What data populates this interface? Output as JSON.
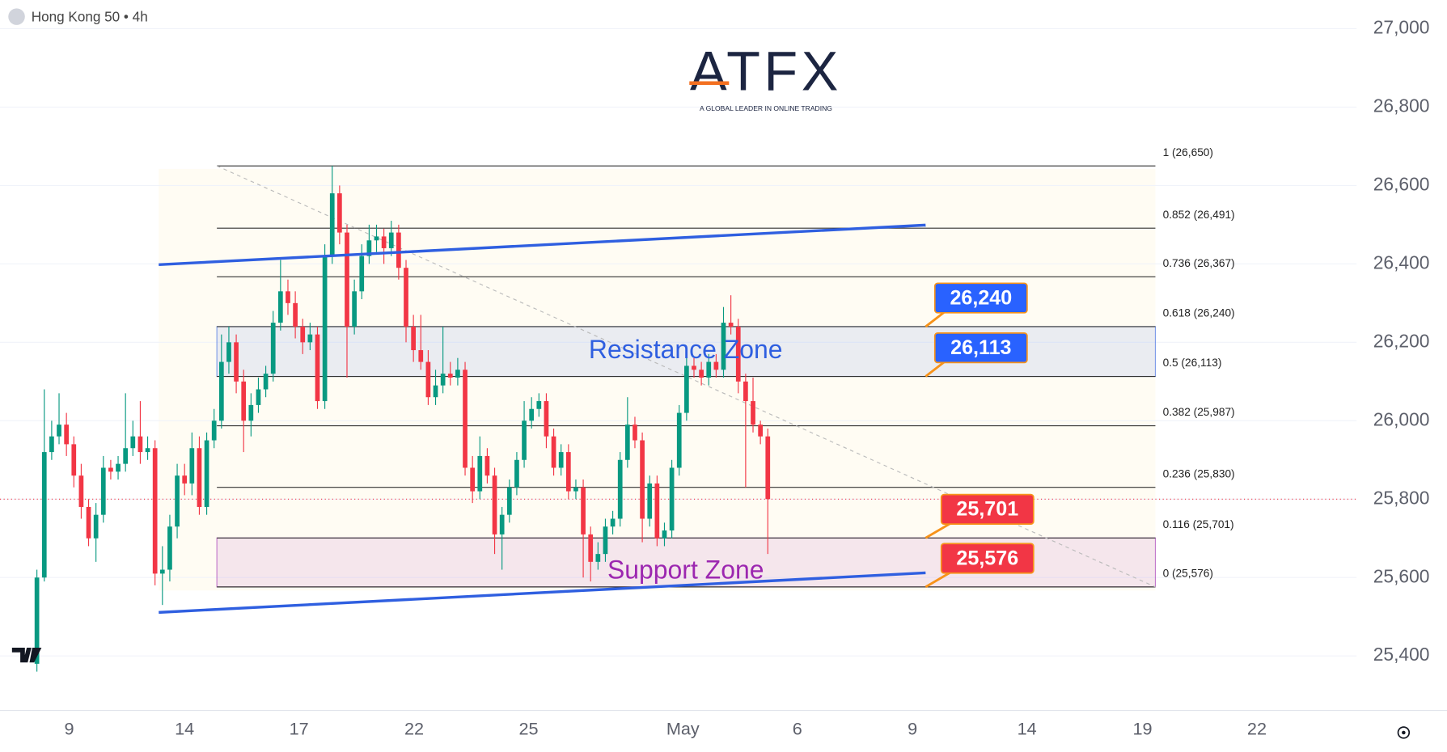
{
  "header": {
    "symbol": "Hong Kong 50 • 4h"
  },
  "logo": {
    "name": "ATFX",
    "tagline": "A GLOBAL LEADER IN ONLINE TRADING"
  },
  "chart_data": {
    "type": "candlestick",
    "up_color": "#089981",
    "down_color": "#f23645",
    "ylim": [
      25261,
      27073
    ],
    "yticks": [
      {
        "value": 25400,
        "label": "25,400"
      },
      {
        "value": 25600,
        "label": "25,600"
      },
      {
        "value": 25800,
        "label": "25,800"
      },
      {
        "value": 26000,
        "label": "26,000"
      },
      {
        "value": 26200,
        "label": "26,200"
      },
      {
        "value": 26400,
        "label": "26,400"
      },
      {
        "value": 26600,
        "label": "26,600"
      },
      {
        "value": 26800,
        "label": "26,800"
      },
      {
        "value": 27000,
        "label": "27,000"
      }
    ],
    "xticks": [
      {
        "value": 4.375,
        "label": "9"
      },
      {
        "value": 20,
        "label": "14"
      },
      {
        "value": 35.5,
        "label": "17"
      },
      {
        "value": 51.1,
        "label": "22"
      },
      {
        "value": 66.6,
        "label": "25"
      },
      {
        "value": 87.5,
        "label": "May"
      },
      {
        "value": 103,
        "label": "6"
      },
      {
        "value": 118.6,
        "label": "9"
      },
      {
        "value": 134.1,
        "label": "14"
      },
      {
        "value": 149.75,
        "label": "19"
      },
      {
        "value": 165.25,
        "label": "22"
      }
    ],
    "grid": true,
    "open": [
      25380,
      25600,
      25920,
      25960,
      25990,
      25940,
      25860,
      25780,
      25700,
      25760,
      25880,
      25870,
      25890,
      25930,
      25960,
      25920,
      25930,
      25610,
      25620,
      25730,
      25860,
      25840,
      25930,
      25780,
      25950,
      26000,
      26150,
      26200,
      26100,
      26000,
      26040,
      26080,
      26120,
      26250,
      26330,
      26300,
      26240,
      26200,
      26220,
      26050,
      26420,
      26580,
      26480,
      26240,
      26330,
      26420,
      26460,
      26470,
      26440,
      26480,
      26390,
      26240,
      26180,
      26150,
      26060,
      26090,
      26120,
      26110,
      26130,
      25880,
      25820,
      25910,
      25860,
      25710,
      25760,
      25830,
      25900,
      26000,
      26030,
      26050,
      25960,
      25880,
      25920,
      25820,
      25830,
      25710,
      25640,
      25660,
      25730,
      25750,
      25900,
      25990,
      25950,
      25750,
      25840,
      25700,
      25720,
      25880,
      26020,
      26140,
      26130,
      26110,
      26150,
      26130,
      26250,
      26240,
      26100,
      26050,
      25990,
      25960
    ],
    "high": [
      25620,
      26080,
      26000,
      26070,
      26020,
      25960,
      25890,
      25800,
      25790,
      25910,
      25900,
      25910,
      26070,
      26000,
      26050,
      25960,
      25950,
      25680,
      25760,
      25890,
      25890,
      25970,
      25960,
      25970,
      26030,
      26220,
      26240,
      26220,
      26130,
      26070,
      26110,
      26140,
      26280,
      26410,
      26360,
      26330,
      26260,
      26250,
      26240,
      26450,
      26650,
      26600,
      26500,
      26360,
      26450,
      26500,
      26500,
      26490,
      26510,
      26500,
      26410,
      26270,
      26270,
      26180,
      26130,
      26240,
      26150,
      26160,
      26150,
      25910,
      25960,
      25930,
      25880,
      25780,
      25850,
      25920,
      26050,
      26060,
      26070,
      26070,
      25980,
      25940,
      25940,
      25850,
      25850,
      25730,
      25690,
      25750,
      25770,
      25920,
      26060,
      26010,
      25970,
      25860,
      25860,
      25740,
      25900,
      26040,
      26160,
      26160,
      26150,
      26170,
      26170,
      26290,
      26320,
      26260,
      26120,
      26110,
      26000,
      25980
    ],
    "low": [
      25360,
      25590,
      25900,
      25940,
      25910,
      25830,
      25750,
      25680,
      25640,
      25740,
      25850,
      25850,
      25870,
      25910,
      25890,
      25900,
      25580,
      25530,
      25590,
      25700,
      25810,
      25810,
      25760,
      25760,
      25930,
      25980,
      26120,
      26070,
      25920,
      25960,
      26020,
      26060,
      26100,
      26230,
      26270,
      26210,
      26170,
      26180,
      26030,
      26030,
      26400,
      26450,
      26110,
      26220,
      26310,
      26400,
      26430,
      26400,
      26420,
      26360,
      26200,
      26150,
      26130,
      26040,
      26040,
      26070,
      26090,
      26090,
      25860,
      25790,
      25800,
      25840,
      25660,
      25620,
      25740,
      25810,
      25880,
      25980,
      26010,
      25930,
      25860,
      25860,
      25800,
      25800,
      25600,
      25590,
      25620,
      25640,
      25710,
      25730,
      25880,
      25930,
      25690,
      25730,
      25680,
      25680,
      25700,
      25860,
      26000,
      26110,
      26090,
      26090,
      26110,
      26110,
      26220,
      26070,
      25830,
      25970,
      25940,
      25660
    ],
    "close": [
      25600,
      25920,
      25960,
      25990,
      25940,
      25860,
      25780,
      25700,
      25760,
      25880,
      25870,
      25890,
      25930,
      25960,
      25920,
      25930,
      25610,
      25620,
      25730,
      25860,
      25840,
      25930,
      25780,
      25950,
      26000,
      26150,
      26200,
      26100,
      26000,
      26040,
      26080,
      26120,
      26250,
      26330,
      26300,
      26240,
      26200,
      26220,
      26050,
      26420,
      26580,
      26480,
      26240,
      26330,
      26420,
      26460,
      26470,
      26440,
      26480,
      26390,
      26240,
      26180,
      26150,
      26060,
      26090,
      26120,
      26110,
      26130,
      25880,
      25820,
      25910,
      25860,
      25710,
      25760,
      25830,
      25900,
      26000,
      26030,
      26050,
      25960,
      25880,
      25920,
      25820,
      25830,
      25710,
      25640,
      25660,
      25730,
      25750,
      25900,
      25990,
      25950,
      25750,
      25840,
      25700,
      25720,
      25880,
      26020,
      26140,
      26130,
      26110,
      26150,
      26130,
      26250,
      26240,
      26100,
      26050,
      25990,
      25960,
      25800
    ],
    "fib_levels": [
      {
        "value": 26650,
        "label": "1 (26,650)"
      },
      {
        "value": 26491,
        "label": "0.852 (26,491)"
      },
      {
        "value": 26367,
        "label": "0.736 (26,367)"
      },
      {
        "value": 26240,
        "label": "0.618 (26,240)"
      },
      {
        "value": 26113,
        "label": "0.5 (26,113)"
      },
      {
        "value": 25987,
        "label": "0.382 (25,987)"
      },
      {
        "value": 25830,
        "label": "0.236 (25,830)"
      },
      {
        "value": 25701,
        "label": "0.116 (25,701)"
      },
      {
        "value": 25576,
        "label": "0 (25,576)"
      }
    ],
    "trendlines": [
      {
        "color": "#2f5fe0",
        "y": [
          26398,
          26499
        ]
      },
      {
        "color": "#2f5fe0",
        "y": [
          25511,
          25612
        ]
      }
    ],
    "zones": [
      {
        "label": "Resistance Zone",
        "color": "#2f5fe0",
        "callout_color": "#2962ff",
        "low": {
          "value": 26113,
          "label": "26,113"
        },
        "high": {
          "value": 26240,
          "label": "26,240"
        }
      },
      {
        "label": "Support Zone",
        "color": "#9c27b0",
        "callout_color": "#f23645",
        "low": {
          "value": 25576,
          "label": "25,576"
        },
        "high": {
          "value": 25701,
          "label": "25,701"
        }
      }
    ]
  }
}
